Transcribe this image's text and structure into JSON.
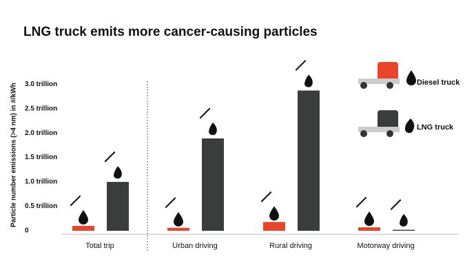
{
  "chart_data": {
    "type": "bar",
    "title": "LNG truck emits more cancer-causing particles",
    "y_label": "Particle number emissions (>4 nm) in #/kWh",
    "categories": [
      "Total trip",
      "Urban driving",
      "Rural driving",
      "Motorway driving"
    ],
    "series": [
      {
        "name": "Diesel truck",
        "color": "#e8452a",
        "values": [
          0.1,
          0.06,
          0.18,
          0.07
        ]
      },
      {
        "name": "LNG truck",
        "color": "#3a3d3b",
        "values": [
          1.0,
          1.89,
          2.87,
          0.02
        ]
      }
    ],
    "ylim": [
      0,
      3.2
    ],
    "yticks": [
      0,
      {
        "value": 0.5,
        "label": "0.5 trillion"
      },
      {
        "value": 1.0,
        "label": "1.0 trillion"
      },
      {
        "value": 1.5,
        "label": "1.5 trillion"
      },
      {
        "value": 2.0,
        "label": "2.0 trillion"
      },
      {
        "value": 2.5,
        "label": "2.5 trillion"
      },
      {
        "value": 3.0,
        "label": "3.0 trillion"
      }
    ],
    "grid": false
  }
}
